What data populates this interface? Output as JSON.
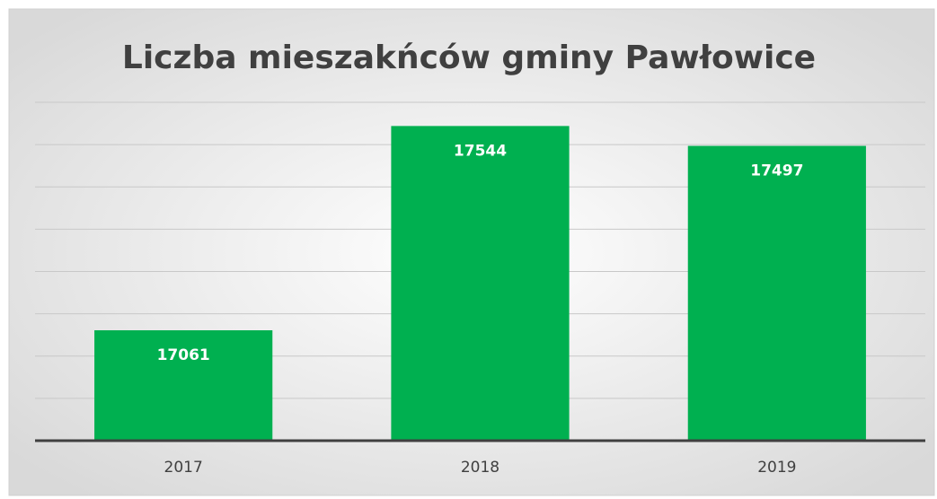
{
  "chart_data": {
    "type": "bar",
    "title": "Liczba mieszakńców gminy Pawłowice",
    "categories": [
      "2017",
      "2018",
      "2019"
    ],
    "values": [
      17061,
      17544,
      17497
    ],
    "color": "#00b050",
    "ylim": [
      16800,
      17600
    ],
    "yticks": [
      16800,
      16900,
      17000,
      17100,
      17200,
      17300,
      17400,
      17500,
      17600
    ],
    "grid": true
  }
}
